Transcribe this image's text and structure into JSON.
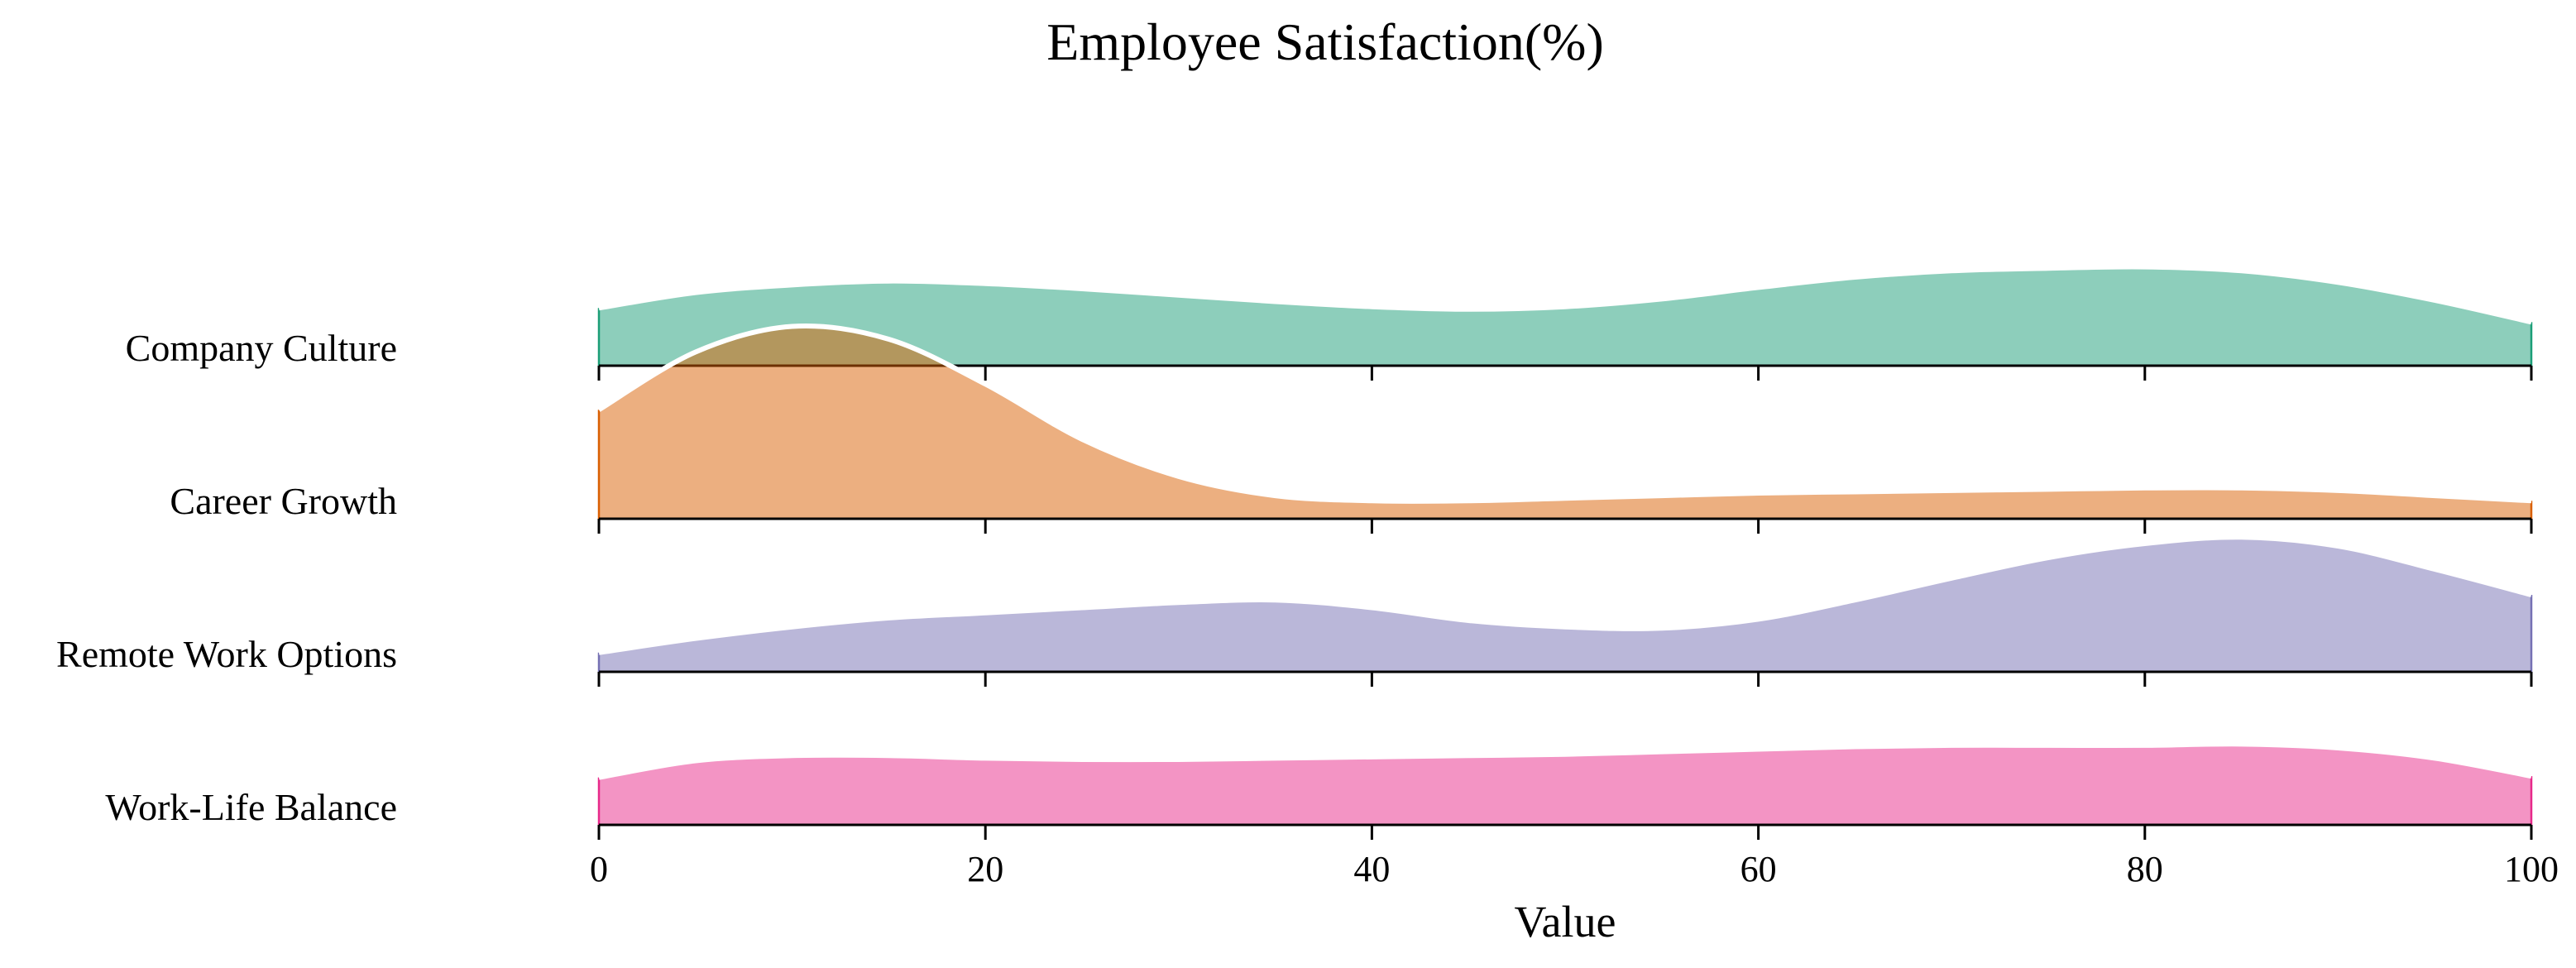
{
  "chart_data": {
    "type": "area",
    "subtype": "ridgeline-density",
    "title": "Employee Satisfaction(%)",
    "xlabel": "Value",
    "ylabel": "",
    "xlim": [
      0,
      100
    ],
    "xticks": [
      0,
      20,
      40,
      60,
      80,
      100
    ],
    "grid": false,
    "legend": "none",
    "series": [
      {
        "name": "Company Culture",
        "color": "#1b9e77",
        "x": [
          0,
          5,
          10,
          15,
          20,
          25,
          30,
          35,
          40,
          45,
          50,
          55,
          60,
          65,
          70,
          75,
          80,
          85,
          90,
          95,
          100
        ],
        "density": [
          0.45,
          0.57,
          0.63,
          0.66,
          0.64,
          0.6,
          0.55,
          0.5,
          0.46,
          0.44,
          0.46,
          0.52,
          0.61,
          0.69,
          0.74,
          0.76,
          0.77,
          0.74,
          0.65,
          0.51,
          0.34
        ]
      },
      {
        "name": "Career Growth",
        "color": "#d95f02",
        "x": [
          0,
          5,
          10,
          15,
          20,
          25,
          30,
          35,
          40,
          45,
          50,
          55,
          60,
          65,
          70,
          75,
          80,
          85,
          90,
          95,
          100
        ],
        "density": [
          0.85,
          1.3,
          1.5,
          1.4,
          1.05,
          0.62,
          0.33,
          0.18,
          0.14,
          0.14,
          0.16,
          0.18,
          0.2,
          0.21,
          0.22,
          0.23,
          0.24,
          0.24,
          0.22,
          0.18,
          0.14
        ]
      },
      {
        "name": "Remote Work Options",
        "color": "#7570b3",
        "x": [
          0,
          5,
          10,
          15,
          20,
          25,
          30,
          35,
          40,
          45,
          50,
          55,
          60,
          65,
          70,
          75,
          80,
          85,
          90,
          95,
          100
        ],
        "density": [
          0.15,
          0.26,
          0.35,
          0.42,
          0.46,
          0.5,
          0.54,
          0.56,
          0.5,
          0.4,
          0.35,
          0.34,
          0.41,
          0.56,
          0.73,
          0.89,
          1.0,
          1.05,
          0.98,
          0.8,
          0.6
        ]
      },
      {
        "name": "Work-Life Balance",
        "color": "#e7298a",
        "x": [
          0,
          5,
          10,
          15,
          20,
          25,
          30,
          35,
          40,
          45,
          50,
          55,
          60,
          65,
          70,
          75,
          80,
          85,
          90,
          95,
          100
        ],
        "density": [
          0.37,
          0.5,
          0.54,
          0.54,
          0.52,
          0.51,
          0.51,
          0.52,
          0.53,
          0.54,
          0.55,
          0.57,
          0.59,
          0.61,
          0.62,
          0.62,
          0.62,
          0.63,
          0.6,
          0.52,
          0.38
        ]
      }
    ]
  }
}
